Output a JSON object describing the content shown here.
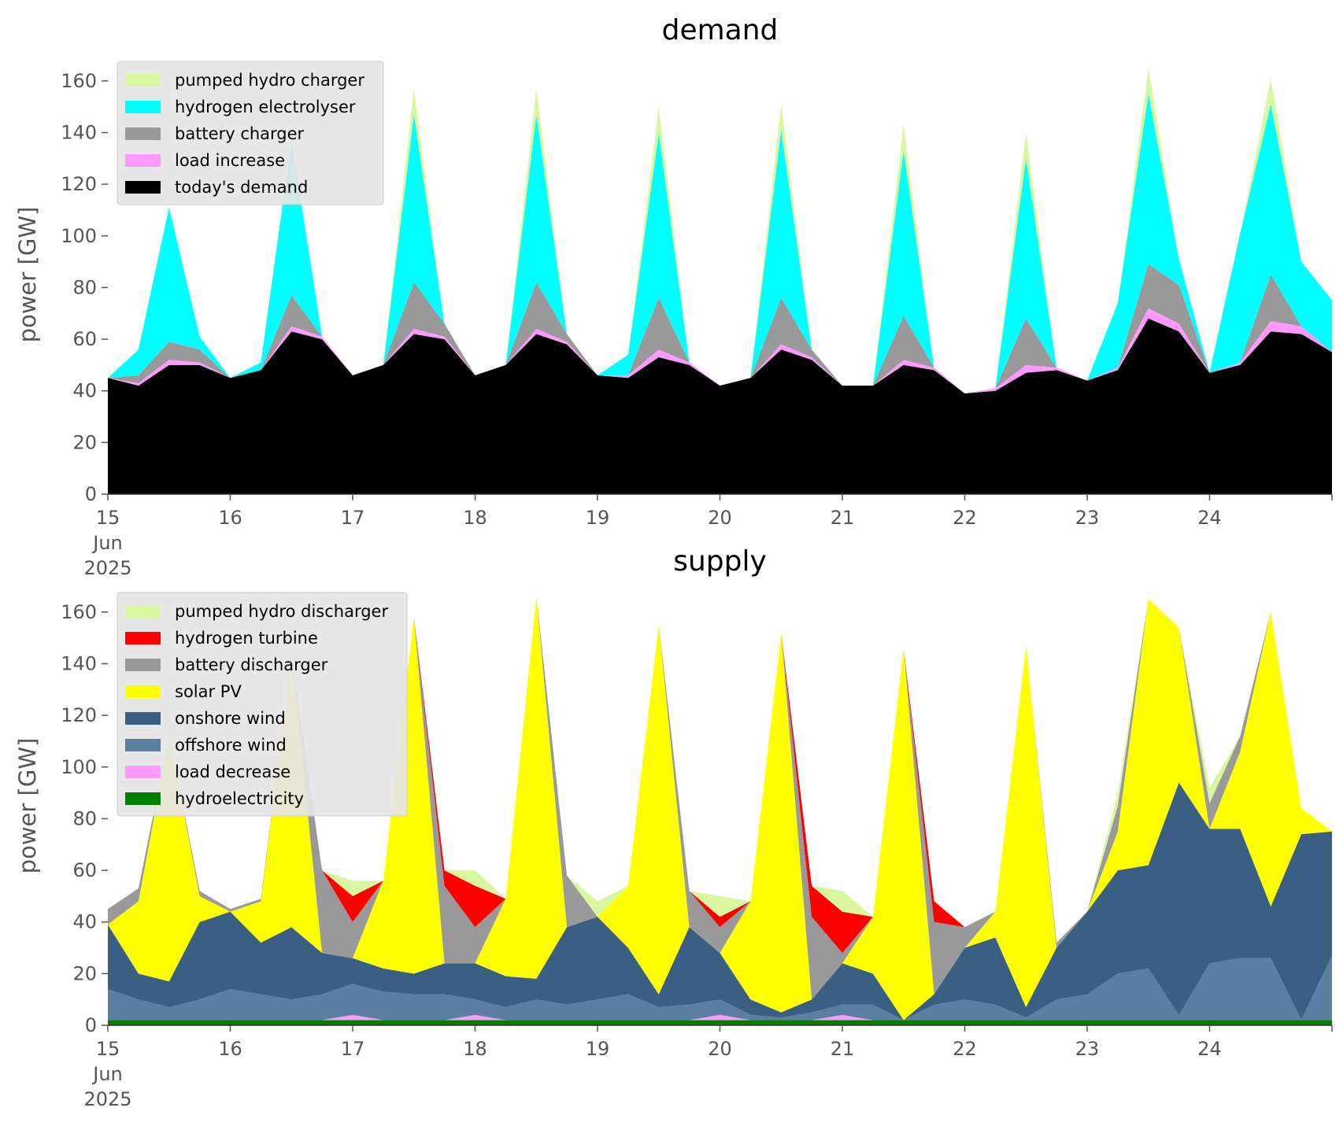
{
  "chart_data": [
    {
      "type": "area",
      "stacked": true,
      "title": "demand",
      "xlabel": "",
      "ylabel": "power [GW]",
      "ylim": [
        0,
        170
      ],
      "yticks": [
        0,
        20,
        40,
        60,
        80,
        100,
        120,
        140,
        160
      ],
      "xlim": [
        15,
        25
      ],
      "xticks": [
        15,
        16,
        17,
        18,
        19,
        20,
        21,
        22,
        23,
        24
      ],
      "xtick_labels": [
        "15",
        "16",
        "17",
        "18",
        "19",
        "20",
        "21",
        "22",
        "23",
        "24"
      ],
      "xtick_extra": [
        "Jun",
        "2025"
      ],
      "x_unit": "day of June 2025",
      "legend_position": "upper left",
      "grid": false,
      "x": [
        15.0,
        15.25,
        15.5,
        15.75,
        16.0,
        16.25,
        16.5,
        16.75,
        17.0,
        17.25,
        17.5,
        17.75,
        18.0,
        18.25,
        18.5,
        18.75,
        19.0,
        19.25,
        19.5,
        19.75,
        20.0,
        20.25,
        20.5,
        20.75,
        21.0,
        21.25,
        21.5,
        21.75,
        22.0,
        22.25,
        22.5,
        22.75,
        23.0,
        23.25,
        23.5,
        23.75,
        24.0,
        24.25,
        24.5,
        24.75,
        25.0
      ],
      "series": [
        {
          "name": "today's demand",
          "color": "#000000",
          "values": [
            45,
            42,
            50,
            50,
            45,
            48,
            63,
            60,
            46,
            50,
            62,
            60,
            46,
            50,
            62,
            58,
            46,
            45,
            53,
            50,
            42,
            45,
            56,
            52,
            42,
            42,
            50,
            48,
            39,
            40,
            47,
            48,
            44,
            48,
            68,
            63,
            47,
            50,
            63,
            62,
            55
          ]
        },
        {
          "name": "load increase",
          "color": "#ff99ff",
          "values": [
            0,
            1,
            2,
            1,
            0,
            0,
            2,
            1,
            0,
            0,
            2,
            1,
            0,
            0,
            2,
            1,
            0,
            1,
            3,
            1,
            0,
            0,
            2,
            1,
            0,
            0,
            2,
            1,
            0,
            1,
            3,
            1,
            0,
            1,
            4,
            3,
            0,
            1,
            4,
            3,
            0
          ]
        },
        {
          "name": "battery charger",
          "color": "#999999",
          "values": [
            0,
            3,
            7,
            5,
            0,
            0,
            12,
            0,
            0,
            0,
            18,
            5,
            0,
            0,
            18,
            3,
            0,
            0,
            20,
            0,
            0,
            0,
            18,
            3,
            0,
            0,
            17,
            0,
            0,
            0,
            18,
            0,
            0,
            0,
            17,
            15,
            0,
            0,
            18,
            0,
            0
          ]
        },
        {
          "name": "hydrogen electrolyser",
          "color": "#00ffff",
          "values": [
            0,
            10,
            52,
            5,
            0,
            3,
            60,
            0,
            0,
            0,
            65,
            0,
            0,
            0,
            65,
            0,
            0,
            8,
            64,
            0,
            0,
            0,
            65,
            0,
            0,
            0,
            64,
            0,
            0,
            0,
            62,
            0,
            0,
            25,
            66,
            10,
            0,
            50,
            66,
            25,
            20
          ]
        },
        {
          "name": "pumped hydro charger",
          "color": "#d9f7a1",
          "values": [
            0,
            0,
            0,
            0,
            0,
            0,
            0,
            0,
            0,
            0,
            10,
            0,
            0,
            0,
            10,
            0,
            0,
            0,
            10,
            0,
            0,
            0,
            10,
            0,
            0,
            0,
            10,
            0,
            0,
            0,
            10,
            0,
            0,
            0,
            10,
            0,
            0,
            0,
            10,
            0,
            0
          ]
        }
      ]
    },
    {
      "type": "area",
      "stacked": true,
      "title": "supply",
      "xlabel": "",
      "ylabel": "power [GW]",
      "ylim": [
        0,
        170
      ],
      "yticks": [
        0,
        20,
        40,
        60,
        80,
        100,
        120,
        140,
        160
      ],
      "xlim": [
        15,
        25
      ],
      "xticks": [
        15,
        16,
        17,
        18,
        19,
        20,
        21,
        22,
        23,
        24
      ],
      "xtick_labels": [
        "15",
        "16",
        "17",
        "18",
        "19",
        "20",
        "21",
        "22",
        "23",
        "24"
      ],
      "xtick_extra": [
        "Jun",
        "2025"
      ],
      "x_unit": "day of June 2025",
      "legend_position": "upper left",
      "grid": false,
      "x": [
        15.0,
        15.25,
        15.5,
        15.75,
        16.0,
        16.25,
        16.5,
        16.75,
        17.0,
        17.25,
        17.5,
        17.75,
        18.0,
        18.25,
        18.5,
        18.75,
        19.0,
        19.25,
        19.5,
        19.75,
        20.0,
        20.25,
        20.5,
        20.75,
        21.0,
        21.25,
        21.5,
        21.75,
        22.0,
        22.25,
        22.5,
        22.75,
        23.0,
        23.25,
        23.5,
        23.75,
        24.0,
        24.25,
        24.5,
        24.75,
        25.0
      ],
      "series": [
        {
          "name": "hydroelectricity",
          "color": "#008000",
          "values": [
            2,
            2,
            2,
            2,
            2,
            2,
            2,
            2,
            2,
            2,
            2,
            2,
            2,
            2,
            2,
            2,
            2,
            2,
            2,
            2,
            2,
            2,
            2,
            2,
            2,
            2,
            2,
            2,
            2,
            2,
            2,
            2,
            2,
            2,
            2,
            2,
            2,
            2,
            2,
            2,
            2
          ]
        },
        {
          "name": "load decrease",
          "color": "#ff99ff",
          "values": [
            0,
            0,
            0,
            0,
            0,
            0,
            0,
            0,
            2,
            0,
            0,
            0,
            2,
            0,
            0,
            0,
            0,
            0,
            0,
            0,
            2,
            0,
            0,
            0,
            2,
            0,
            0,
            0,
            0,
            0,
            0,
            0,
            0,
            0,
            0,
            0,
            0,
            0,
            0,
            0,
            0
          ]
        },
        {
          "name": "offshore wind",
          "color": "#5b7fa3",
          "values": [
            12,
            8,
            5,
            8,
            12,
            10,
            8,
            10,
            12,
            11,
            10,
            10,
            6,
            5,
            8,
            6,
            8,
            10,
            5,
            6,
            6,
            2,
            1,
            3,
            4,
            6,
            0,
            6,
            8,
            6,
            1,
            8,
            10,
            18,
            20,
            2,
            22,
            24,
            24,
            0,
            25
          ]
        },
        {
          "name": "onshore wind",
          "color": "#3b5f82",
          "values": [
            25,
            10,
            10,
            30,
            30,
            20,
            28,
            16,
            10,
            9,
            8,
            12,
            14,
            12,
            8,
            30,
            32,
            18,
            5,
            30,
            18,
            6,
            2,
            5,
            16,
            12,
            0,
            4,
            20,
            26,
            4,
            20,
            32,
            40,
            40,
            90,
            52,
            50,
            20,
            72,
            48
          ]
        },
        {
          "name": "solar PV",
          "color": "#ffff00",
          "values": [
            0,
            28,
            95,
            10,
            0,
            16,
            105,
            0,
            0,
            34,
            138,
            0,
            0,
            30,
            148,
            0,
            0,
            24,
            143,
            0,
            0,
            38,
            147,
            0,
            0,
            22,
            144,
            0,
            0,
            10,
            140,
            0,
            0,
            15,
            103,
            60,
            0,
            30,
            114,
            10,
            0
          ]
        },
        {
          "name": "battery discharger",
          "color": "#999999",
          "values": [
            6,
            5,
            0,
            2,
            1,
            1,
            0,
            32,
            14,
            0,
            0,
            30,
            14,
            0,
            0,
            20,
            0,
            0,
            0,
            14,
            10,
            0,
            0,
            32,
            4,
            0,
            0,
            28,
            8,
            0,
            0,
            2,
            0,
            10,
            0,
            0,
            10,
            6,
            0,
            0,
            0
          ]
        },
        {
          "name": "hydrogen turbine",
          "color": "#ff0000",
          "values": [
            0,
            0,
            0,
            0,
            0,
            0,
            0,
            0,
            10,
            0,
            0,
            6,
            16,
            0,
            0,
            0,
            0,
            0,
            0,
            0,
            4,
            0,
            0,
            12,
            16,
            0,
            0,
            8,
            0,
            0,
            0,
            0,
            0,
            0,
            0,
            0,
            0,
            0,
            0,
            0,
            0
          ]
        },
        {
          "name": "pumped hydro discharger",
          "color": "#d9f7a1",
          "values": [
            0,
            0,
            0,
            0,
            0,
            0,
            0,
            0,
            6,
            0,
            0,
            0,
            6,
            0,
            0,
            0,
            6,
            0,
            0,
            0,
            8,
            0,
            0,
            0,
            8,
            0,
            0,
            0,
            0,
            0,
            0,
            0,
            0,
            5,
            0,
            0,
            6,
            0,
            0,
            0,
            0
          ]
        }
      ]
    }
  ]
}
